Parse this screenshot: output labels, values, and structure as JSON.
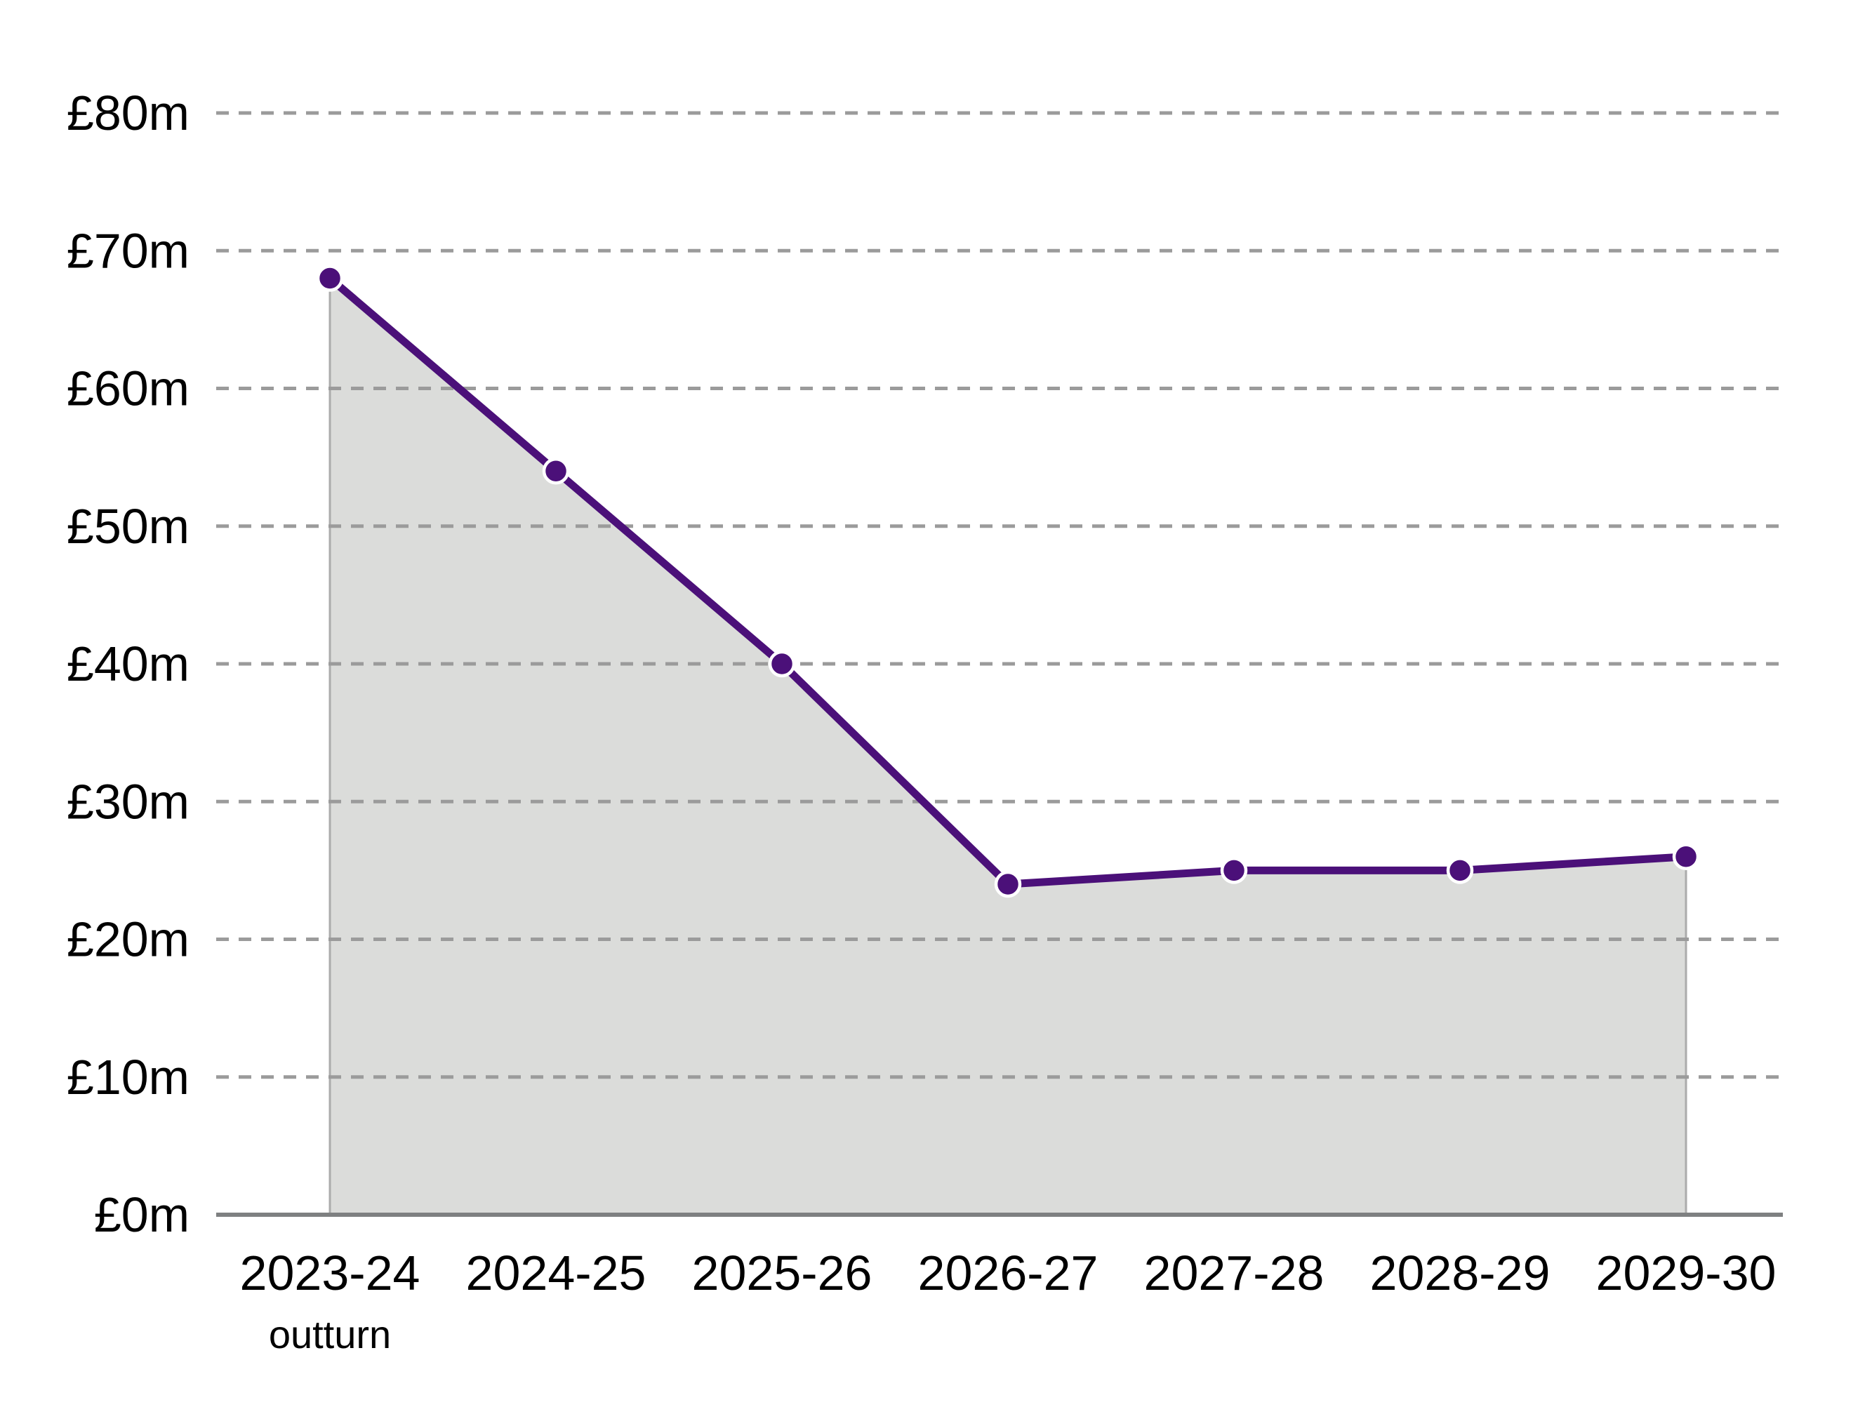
{
  "chart_data": {
    "type": "line",
    "subtype": "line-with-area-fill-and-markers",
    "title": "",
    "xlabel": "",
    "ylabel": "",
    "categories": [
      "2023-24",
      "2024-25",
      "2025-26",
      "2026-27",
      "2027-28",
      "2028-29",
      "2029-30"
    ],
    "x_first_sublabel": "outturn",
    "values": [
      68,
      54,
      40,
      24,
      25,
      25,
      26
    ],
    "value_unit": "£m",
    "ylim": [
      0,
      80
    ],
    "y_tick_step": 10,
    "y_ticks": [
      {
        "label": "£0m",
        "value": 0
      },
      {
        "label": "£10m",
        "value": 10
      },
      {
        "label": "£20m",
        "value": 20
      },
      {
        "label": "£30m",
        "value": 30
      },
      {
        "label": "£40m",
        "value": 40
      },
      {
        "label": "£50m",
        "value": 50
      },
      {
        "label": "£60m",
        "value": 60
      },
      {
        "label": "£70m",
        "value": 70
      },
      {
        "label": "£80m",
        "value": 80
      }
    ],
    "grid": "horizontal-dashed",
    "legend": "none",
    "colors": {
      "line": "#4b1079",
      "marker": "#4b1079",
      "marker_ring": "#ffffff",
      "area_fill": "#dbdcda",
      "area_edge": "#ababab",
      "gridline": "#9b9b9b",
      "axis": "#7e8081",
      "text": "#000000",
      "background": "#ffffff"
    }
  }
}
